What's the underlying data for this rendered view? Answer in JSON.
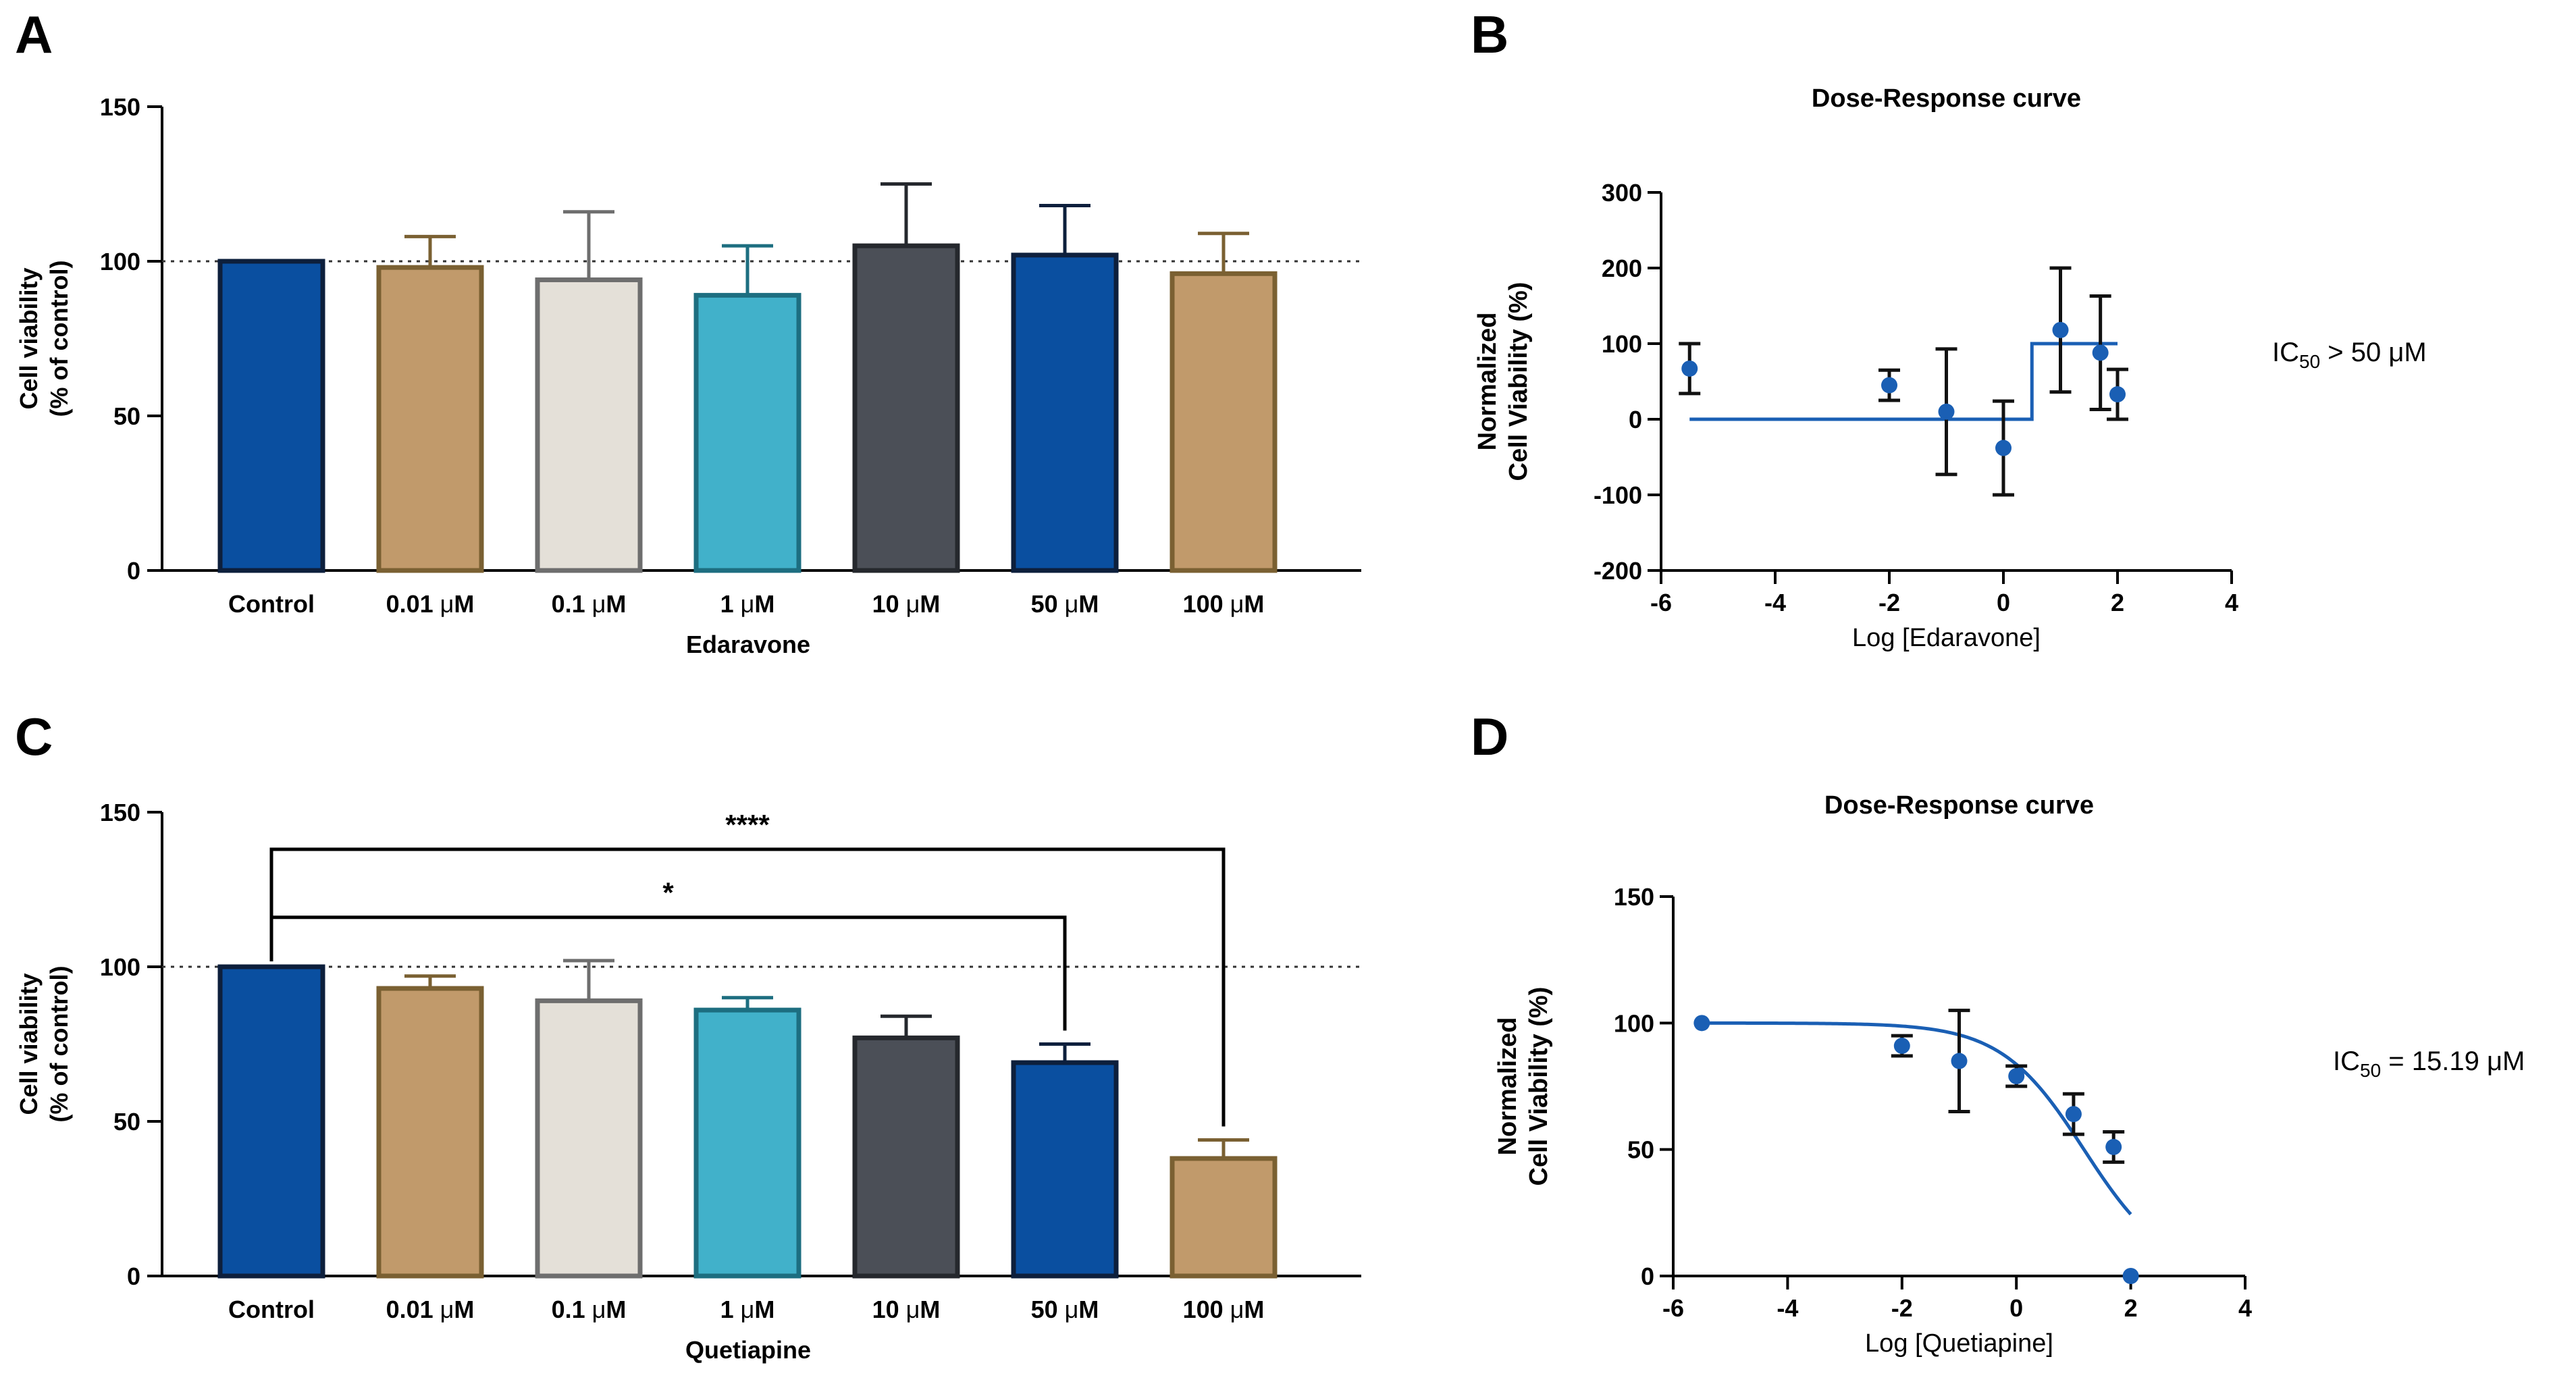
{
  "panels": [
    {
      "letter": "A"
    },
    {
      "letter": "B"
    },
    {
      "letter": "C"
    },
    {
      "letter": "D"
    }
  ],
  "chart_data": [
    {
      "id": "A",
      "type": "bar",
      "categories": [
        "Control",
        "0.01 μM",
        "0.1 μM",
        "1 μM",
        "10 μM",
        "50 μM",
        "100 μM"
      ],
      "values": [
        100,
        98,
        94,
        89,
        105,
        102,
        96
      ],
      "errors": [
        0,
        10,
        22,
        16,
        20,
        16,
        13
      ],
      "bar_fill": [
        "#0a4fa0",
        "#c19a6b",
        "#e4e0d8",
        "#41b1ca",
        "#4b4f57",
        "#0a4fa0",
        "#c19a6b"
      ],
      "bar_stroke": [
        "#0d1f3c",
        "#7a6032",
        "#6e6e6e",
        "#1d6e80",
        "#25282d",
        "#0d1f3c",
        "#7a6032"
      ],
      "title": "",
      "xlabel": "Edaravone",
      "ylabel_line1": "Cell viability",
      "ylabel_line2": "(% of control)",
      "ylim": [
        0,
        150
      ],
      "yticks": [
        0,
        50,
        100,
        150
      ],
      "reference_line": 100
    },
    {
      "id": "B",
      "type": "scatter",
      "title": "Dose-Response curve",
      "xlabel": "Log [Edaravone]",
      "ylabel_line1": "Normalized",
      "ylabel_line2": "Cell Viability (%)",
      "xlim": [
        -6,
        4
      ],
      "ylim": [
        -200,
        300
      ],
      "xticks": [
        -6,
        -4,
        -2,
        0,
        2,
        4
      ],
      "yticks": [
        -200,
        -100,
        0,
        100,
        200,
        300
      ],
      "points": [
        {
          "x": -5.5,
          "y": 67,
          "err": 33
        },
        {
          "x": -2.0,
          "y": 45,
          "err": 20
        },
        {
          "x": -1.0,
          "y": 10,
          "err": 83
        },
        {
          "x": 0.0,
          "y": -38,
          "err": 62
        },
        {
          "x": 1.0,
          "y": 118,
          "err": 82
        },
        {
          "x": 1.7,
          "y": 88,
          "err": 75
        },
        {
          "x": 2.0,
          "y": 33,
          "err": 33
        }
      ],
      "fit": {
        "bottom": 0,
        "top": 100,
        "step_at": 0.5,
        "x_start": -5.5,
        "x_end": 2.0
      },
      "annotation": {
        "prefix": "IC",
        "sub": "50",
        "suffix": " > 50 μM"
      },
      "marker_color": "#1a5fb4"
    },
    {
      "id": "C",
      "type": "bar",
      "categories": [
        "Control",
        "0.01 μM",
        "0.1 μM",
        "1 μM",
        "10 μM",
        "50 μM",
        "100 μM"
      ],
      "values": [
        100,
        93,
        89,
        86,
        77,
        69,
        38
      ],
      "errors": [
        0,
        4,
        13,
        4,
        7,
        6,
        6
      ],
      "bar_fill": [
        "#0a4fa0",
        "#c19a6b",
        "#e4e0d8",
        "#41b1ca",
        "#4b4f57",
        "#0a4fa0",
        "#c19a6b"
      ],
      "bar_stroke": [
        "#0d1f3c",
        "#7a6032",
        "#6e6e6e",
        "#1d6e80",
        "#25282d",
        "#0d1f3c",
        "#7a6032"
      ],
      "title": "",
      "xlabel": "Quetiapine",
      "ylabel_line1": "Cell viability",
      "ylabel_line2": "(% of control)",
      "ylim": [
        0,
        150
      ],
      "yticks": [
        0,
        50,
        100,
        150
      ],
      "reference_line": 100,
      "significance": [
        {
          "from": 0,
          "to": 6,
          "y": 138,
          "label": "****"
        },
        {
          "from": 0,
          "to": 5,
          "y": 116,
          "label": "*"
        }
      ]
    },
    {
      "id": "D",
      "type": "scatter",
      "title": "Dose-Response curve",
      "xlabel": "Log [Quetiapine]",
      "ylabel_line1": "Normalized",
      "ylabel_line2": "Cell Viability (%)",
      "xlim": [
        -6,
        4
      ],
      "ylim": [
        0,
        150
      ],
      "xticks": [
        -6,
        -4,
        -2,
        0,
        2,
        4
      ],
      "yticks": [
        0,
        50,
        100,
        150
      ],
      "points": [
        {
          "x": -5.5,
          "y": 100,
          "err": 0
        },
        {
          "x": -2.0,
          "y": 91,
          "err": 4
        },
        {
          "x": -1.0,
          "y": 85,
          "err": 20
        },
        {
          "x": 0.0,
          "y": 79,
          "err": 4
        },
        {
          "x": 1.0,
          "y": 64,
          "err": 8
        },
        {
          "x": 1.7,
          "y": 51,
          "err": 6
        },
        {
          "x": 2.0,
          "y": 0,
          "err": 0
        }
      ],
      "fit": {
        "top": 100,
        "bottom": 0,
        "log_ic50": 1.1816,
        "hill": 0.6,
        "x_start": -5.5,
        "x_end": 2.0
      },
      "annotation": {
        "prefix": "IC",
        "sub": "50",
        "suffix": " = 15.19 μM"
      },
      "marker_color": "#1a5fb4"
    }
  ]
}
